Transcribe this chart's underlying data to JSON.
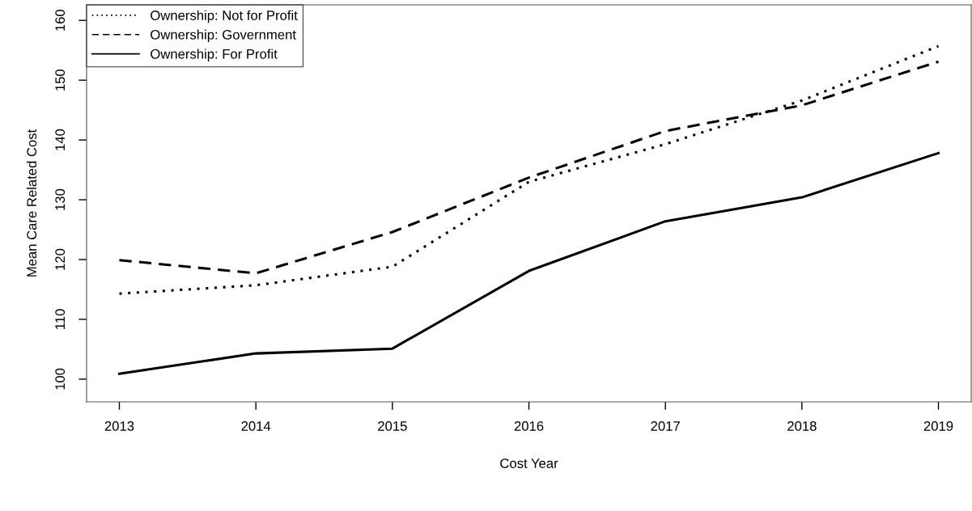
{
  "chart_data": {
    "type": "line",
    "xlabel": "Cost Year",
    "ylabel": "Mean Care Related Cost",
    "x": [
      2013,
      2014,
      2015,
      2016,
      2017,
      2018,
      2019
    ],
    "series": [
      {
        "name": "Ownership: Not for Profit",
        "color": "#000000",
        "line_style": "dotted",
        "values": [
          114.3,
          115.7,
          118.8,
          133.0,
          139.3,
          146.6,
          155.7
        ]
      },
      {
        "name": "Ownership: Government",
        "color": "#000000",
        "line_style": "dashed",
        "values": [
          119.9,
          117.7,
          124.6,
          133.7,
          141.5,
          145.8,
          153.1
        ]
      },
      {
        "name": "Ownership: For Profit",
        "color": "#000000",
        "line_style": "solid",
        "values": [
          100.9,
          104.3,
          105.1,
          118.1,
          126.4,
          130.4,
          137.8
        ]
      }
    ],
    "xlim": [
      2012.76,
      2019.24
    ],
    "xticks": [
      2013,
      2014,
      2015,
      2016,
      2017,
      2018,
      2019
    ],
    "ylim": [
      96.2,
      162.6
    ],
    "yticks": [
      100,
      110,
      120,
      130,
      140,
      150,
      160
    ],
    "grid": false,
    "legend": "top left",
    "marker": "none"
  }
}
